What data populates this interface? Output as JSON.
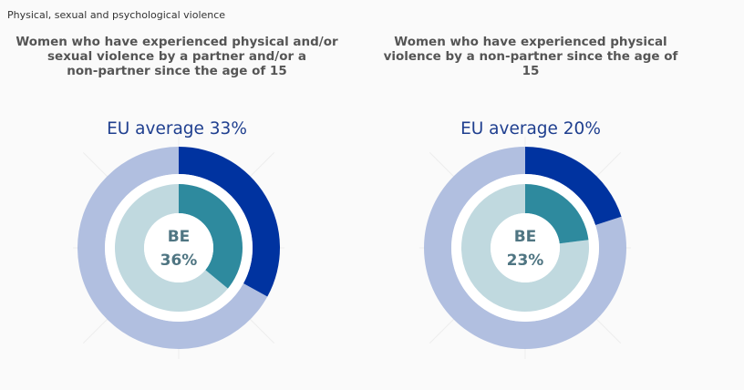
{
  "header": {
    "section_label": "Physical, sexual and psychological violence"
  },
  "colors": {
    "eu_outer_bg": "#b1bfe0",
    "eu_outer_fill": "#0033a0",
    "country_inner_bg": "#c0d9df",
    "country_inner_fill": "#2e8a9e",
    "center_text": "#4f7582",
    "eu_label_text": "#1f3f8f"
  },
  "chart_data": [
    {
      "type": "pie",
      "title": "Women who have experienced physical and/or sexual violence by a partner and/or a non-partner since the age of 15",
      "title_lines": [
        "Women who have experienced physical and/or",
        "sexual violence by a partner and/or a",
        "non-partner since the age of 15"
      ],
      "eu_label": "EU average 33%",
      "eu_value": 33,
      "country": "BE",
      "country_value": 36,
      "country_value_label": "36%",
      "max": 100
    },
    {
      "type": "pie",
      "title": "Women who have experienced physical violence by a non-partner since the age of 15",
      "title_lines": [
        "Women who have experienced physical",
        "violence by a non-partner since the age of",
        "15"
      ],
      "eu_label": "EU average 20%",
      "eu_value": 20,
      "country": "BE",
      "country_value": 23,
      "country_value_label": "23%",
      "max": 100
    }
  ]
}
